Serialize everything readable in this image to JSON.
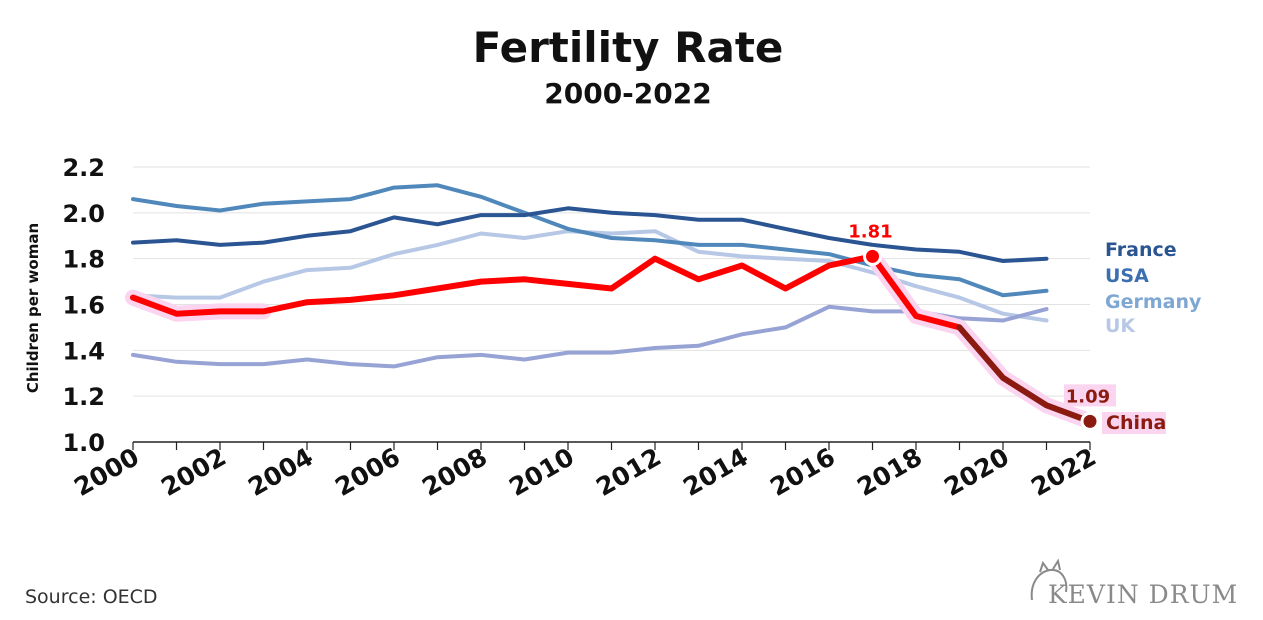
{
  "chart_data": {
    "type": "line",
    "title": "Fertility Rate",
    "subtitle": "2000-2022",
    "ylabel": "Children per woman",
    "xlabel": "",
    "xlim": [
      2000,
      2022
    ],
    "ylim": [
      1.0,
      2.2
    ],
    "x_ticks": [
      "2000",
      "2002",
      "2004",
      "2006",
      "2008",
      "2010",
      "2012",
      "2014",
      "2016",
      "2018",
      "2020",
      "2022"
    ],
    "y_ticks": [
      "1.0",
      "1.2",
      "1.4",
      "1.6",
      "1.8",
      "2.0",
      "2.2"
    ],
    "grid": "horizontal",
    "legend_placement": "right",
    "series": [
      {
        "name": "France",
        "color": "#2b5592",
        "x": [
          2000,
          2001,
          2002,
          2003,
          2004,
          2005,
          2006,
          2007,
          2008,
          2009,
          2010,
          2011,
          2012,
          2013,
          2014,
          2015,
          2016,
          2017,
          2018,
          2019,
          2020,
          2021
        ],
        "values": [
          1.87,
          1.88,
          1.86,
          1.87,
          1.9,
          1.92,
          1.98,
          1.95,
          1.99,
          1.99,
          2.02,
          2.0,
          1.99,
          1.97,
          1.97,
          1.93,
          1.89,
          1.86,
          1.84,
          1.83,
          1.79,
          1.8
        ]
      },
      {
        "name": "USA",
        "color": "#5088bb",
        "x": [
          2000,
          2001,
          2002,
          2003,
          2004,
          2005,
          2006,
          2007,
          2008,
          2009,
          2010,
          2011,
          2012,
          2013,
          2014,
          2015,
          2016,
          2017,
          2018,
          2019,
          2020,
          2021
        ],
        "values": [
          2.06,
          2.03,
          2.01,
          2.04,
          2.05,
          2.06,
          2.11,
          2.12,
          2.07,
          2.0,
          1.93,
          1.89,
          1.88,
          1.86,
          1.86,
          1.84,
          1.82,
          1.77,
          1.73,
          1.71,
          1.64,
          1.66
        ]
      },
      {
        "name": "Germany",
        "color": "#97a3d4",
        "x": [
          2000,
          2001,
          2002,
          2003,
          2004,
          2005,
          2006,
          2007,
          2008,
          2009,
          2010,
          2011,
          2012,
          2013,
          2014,
          2015,
          2016,
          2017,
          2018,
          2019,
          2020,
          2021
        ],
        "values": [
          1.38,
          1.35,
          1.34,
          1.34,
          1.36,
          1.34,
          1.33,
          1.37,
          1.38,
          1.36,
          1.39,
          1.39,
          1.41,
          1.42,
          1.47,
          1.5,
          1.59,
          1.57,
          1.57,
          1.54,
          1.53,
          1.58
        ]
      },
      {
        "name": "UK",
        "color": "#b7c8e6",
        "x": [
          2000,
          2001,
          2002,
          2003,
          2004,
          2005,
          2006,
          2007,
          2008,
          2009,
          2010,
          2011,
          2012,
          2013,
          2014,
          2015,
          2016,
          2017,
          2018,
          2019,
          2020,
          2021
        ],
        "values": [
          1.64,
          1.63,
          1.63,
          1.7,
          1.75,
          1.76,
          1.82,
          1.86,
          1.91,
          1.89,
          1.92,
          1.91,
          1.92,
          1.83,
          1.81,
          1.8,
          1.79,
          1.74,
          1.68,
          1.63,
          1.56,
          1.53
        ]
      },
      {
        "name": "China",
        "color": "#ff0000",
        "color_late": "#8b1a10",
        "x": [
          2000,
          2001,
          2002,
          2003,
          2004,
          2005,
          2006,
          2007,
          2008,
          2009,
          2010,
          2011,
          2012,
          2013,
          2014,
          2015,
          2016,
          2017,
          2018,
          2019,
          2020,
          2021,
          2022
        ],
        "values": [
          1.63,
          1.56,
          1.57,
          1.57,
          1.61,
          1.62,
          1.64,
          1.67,
          1.7,
          1.71,
          1.69,
          1.67,
          1.8,
          1.71,
          1.77,
          1.67,
          1.77,
          1.81,
          1.55,
          1.5,
          1.28,
          1.16,
          1.09
        ]
      }
    ],
    "annotations": [
      {
        "text": "1.81",
        "x": 2017,
        "y": 1.81,
        "color": "#ff0000"
      },
      {
        "text": "1.09",
        "x": 2022,
        "y": 1.09,
        "color": "#8b1a10"
      }
    ]
  },
  "legend": [
    {
      "label": "France",
      "color": "#2b5592"
    },
    {
      "label": "USA",
      "color": "#3a6fb0"
    },
    {
      "label": "Germany",
      "color": "#7fa7d3"
    },
    {
      "label": "UK",
      "color": "#b7c8e6"
    }
  ],
  "china_label": {
    "label": "China",
    "color": "#8b1a10"
  },
  "footer": {
    "source": "Source:  OECD",
    "brand": "KEVIN DRUM"
  }
}
